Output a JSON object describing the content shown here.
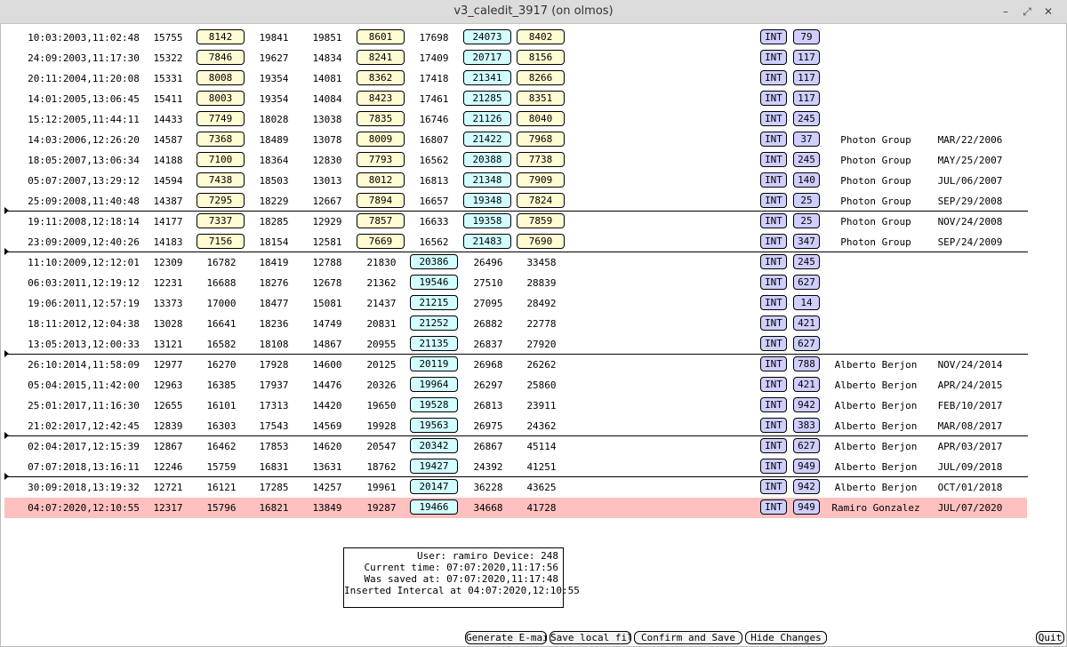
{
  "window": {
    "title": "v3_caledit_3917 (on olmos)",
    "minimize_glyph": "–",
    "maximize_glyph": "⤢",
    "close_glyph": "✕"
  },
  "rows": [
    {
      "timestamp": "10:03:2003,11:02:48",
      "c1": "15755",
      "c2": "8142",
      "c3": "19841",
      "c4": "19851",
      "c5": "8601",
      "c6": "17698",
      "c7": "24073",
      "c8": "8402",
      "type": "INT",
      "count": "79",
      "group": "",
      "date": ""
    },
    {
      "timestamp": "24:09:2003,11:17:30",
      "c1": "15322",
      "c2": "7846",
      "c3": "19627",
      "c4": "14834",
      "c5": "8241",
      "c6": "17409",
      "c7": "20717",
      "c8": "8156",
      "type": "INT",
      "count": "117",
      "group": "",
      "date": ""
    },
    {
      "timestamp": "20:11:2004,11:20:08",
      "c1": "15331",
      "c2": "8008",
      "c3": "19354",
      "c4": "14081",
      "c5": "8362",
      "c6": "17418",
      "c7": "21341",
      "c8": "8266",
      "type": "INT",
      "count": "117",
      "group": "",
      "date": ""
    },
    {
      "timestamp": "14:01:2005,13:06:45",
      "c1": "15411",
      "c2": "8003",
      "c3": "19354",
      "c4": "14084",
      "c5": "8423",
      "c6": "17461",
      "c7": "21285",
      "c8": "8351",
      "type": "INT",
      "count": "117",
      "group": "",
      "date": ""
    },
    {
      "timestamp": "15:12:2005,11:44:11",
      "c1": "14433",
      "c2": "7749",
      "c3": "18028",
      "c4": "13038",
      "c5": "7835",
      "c6": "16746",
      "c7": "21126",
      "c8": "8040",
      "type": "INT",
      "count": "245",
      "group": "",
      "date": ""
    },
    {
      "timestamp": "14:03:2006,12:26:20",
      "c1": "14587",
      "c2": "7368",
      "c3": "18489",
      "c4": "13078",
      "c5": "8009",
      "c6": "16807",
      "c7": "21422",
      "c8": "7968",
      "type": "INT",
      "count": "37",
      "group": "Photon Group",
      "date": "MAR/22/2006"
    },
    {
      "timestamp": "18:05:2007,13:06:34",
      "c1": "14188",
      "c2": "7100",
      "c3": "18364",
      "c4": "12830",
      "c5": "7793",
      "c6": "16562",
      "c7": "20388",
      "c8": "7738",
      "type": "INT",
      "count": "245",
      "group": "Photon Group",
      "date": "MAY/25/2007"
    },
    {
      "timestamp": "05:07:2007,13:29:12",
      "c1": "14594",
      "c2": "7438",
      "c3": "18503",
      "c4": "13013",
      "c5": "8012",
      "c6": "16813",
      "c7": "21348",
      "c8": "7909",
      "type": "INT",
      "count": "140",
      "group": "Photon Group",
      "date": "JUL/06/2007"
    },
    {
      "timestamp": "25:09:2008,11:40:48",
      "c1": "14387",
      "c2": "7295",
      "c3": "18229",
      "c4": "12667",
      "c5": "7894",
      "c6": "16657",
      "c7": "19348",
      "c8": "7824",
      "type": "INT",
      "count": "25",
      "group": "Photon Group",
      "date": "SEP/29/2008"
    },
    {
      "timestamp": "19:11:2008,12:18:14",
      "c1": "14177",
      "c2": "7337",
      "c3": "18285",
      "c4": "12929",
      "c5": "7857",
      "c6": "16633",
      "c7": "19358",
      "c8": "7859",
      "type": "INT",
      "count": "25",
      "group": "Photon Group",
      "date": "NOV/24/2008"
    },
    {
      "timestamp": "23:09:2009,12:40:26",
      "c1": "14183",
      "c2": "7156",
      "c3": "18154",
      "c4": "12581",
      "c5": "7669",
      "c6": "16562",
      "c7": "21483",
      "c8": "7690",
      "type": "INT",
      "count": "347",
      "group": "Photon Group",
      "date": "SEP/24/2009"
    },
    {
      "timestamp": "11:10:2009,12:12:01",
      "c1": "12309",
      "c2": "16782",
      "c3": "18419",
      "c4": "12788",
      "c5": "21830",
      "c6": "20386",
      "c7": "26496",
      "c8": "33458",
      "type": "INT",
      "count": "245",
      "group": "",
      "date": ""
    },
    {
      "timestamp": "06:03:2011,12:19:12",
      "c1": "12231",
      "c2": "16688",
      "c3": "18276",
      "c4": "12678",
      "c5": "21362",
      "c6": "19546",
      "c7": "27510",
      "c8": "28839",
      "type": "INT",
      "count": "627",
      "group": "",
      "date": ""
    },
    {
      "timestamp": "19:06:2011,12:57:19",
      "c1": "13373",
      "c2": "17000",
      "c3": "18477",
      "c4": "15081",
      "c5": "21437",
      "c6": "21215",
      "c7": "27095",
      "c8": "28492",
      "type": "INT",
      "count": "14",
      "group": "",
      "date": ""
    },
    {
      "timestamp": "18:11:2012,12:04:38",
      "c1": "13028",
      "c2": "16641",
      "c3": "18236",
      "c4": "14749",
      "c5": "20831",
      "c6": "21252",
      "c7": "26882",
      "c8": "22778",
      "type": "INT",
      "count": "421",
      "group": "",
      "date": ""
    },
    {
      "timestamp": "13:05:2013,12:00:33",
      "c1": "13121",
      "c2": "16582",
      "c3": "18108",
      "c4": "14867",
      "c5": "20955",
      "c6": "21135",
      "c7": "26837",
      "c8": "27920",
      "type": "INT",
      "count": "627",
      "group": "",
      "date": ""
    },
    {
      "timestamp": "26:10:2014,11:58:09",
      "c1": "12977",
      "c2": "16270",
      "c3": "17928",
      "c4": "14600",
      "c5": "20125",
      "c6": "20119",
      "c7": "26968",
      "c8": "26262",
      "type": "INT",
      "count": "788",
      "group": "Alberto Berjon",
      "date": "NOV/24/2014"
    },
    {
      "timestamp": "05:04:2015,11:42:00",
      "c1": "12963",
      "c2": "16385",
      "c3": "17937",
      "c4": "14476",
      "c5": "20326",
      "c6": "19964",
      "c7": "26297",
      "c8": "25860",
      "type": "INT",
      "count": "421",
      "group": "Alberto Berjon",
      "date": "APR/24/2015"
    },
    {
      "timestamp": "25:01:2017,11:16:30",
      "c1": "12655",
      "c2": "16101",
      "c3": "17313",
      "c4": "14420",
      "c5": "19650",
      "c6": "19528",
      "c7": "26813",
      "c8": "23911",
      "type": "INT",
      "count": "942",
      "group": "Alberto Berjon",
      "date": "FEB/10/2017"
    },
    {
      "timestamp": "21:02:2017,12:42:45",
      "c1": "12839",
      "c2": "16303",
      "c3": "17543",
      "c4": "14569",
      "c5": "19928",
      "c6": "19563",
      "c7": "26975",
      "c8": "24362",
      "type": "INT",
      "count": "383",
      "group": "Alberto Berjon",
      "date": "MAR/08/2017"
    },
    {
      "timestamp": "02:04:2017,12:15:39",
      "c1": "12867",
      "c2": "16462",
      "c3": "17853",
      "c4": "14620",
      "c5": "20547",
      "c6": "20342",
      "c7": "26867",
      "c8": "45114",
      "type": "INT",
      "count": "627",
      "group": "Alberto Berjon",
      "date": "APR/03/2017"
    },
    {
      "timestamp": "07:07:2018,13:16:11",
      "c1": "12246",
      "c2": "15759",
      "c3": "16831",
      "c4": "13631",
      "c5": "18762",
      "c6": "19427",
      "c7": "24392",
      "c8": "41251",
      "type": "INT",
      "count": "949",
      "group": "Alberto Berjon",
      "date": "JUL/09/2018"
    },
    {
      "timestamp": "30:09:2018,13:19:32",
      "c1": "12721",
      "c2": "16121",
      "c3": "17285",
      "c4": "14257",
      "c5": "19961",
      "c6": "20147",
      "c7": "36228",
      "c8": "43625",
      "type": "INT",
      "count": "942",
      "group": "Alberto Berjon",
      "date": "OCT/01/2018"
    },
    {
      "timestamp": "04:07:2020,12:10:55",
      "c1": "12317",
      "c2": "15796",
      "c3": "16821",
      "c4": "13849",
      "c5": "19287",
      "c6": "19466",
      "c7": "34668",
      "c8": "41728",
      "type": "INT",
      "count": "949",
      "group": "Ramiro Gonzalez",
      "date": "JUL/07/2020"
    }
  ],
  "info": {
    "user_line": "User: ramiro Device: 248",
    "current_time_line": "Current time: 07:07:2020,11:17:56",
    "saved_line": "Was saved at: 07:07:2020,11:17:48",
    "inserted_line": "Inserted Intercal at 04:07:2020,12:10:55"
  },
  "buttons": {
    "generate_email": "Generate E-mail",
    "save_local": "Save local file",
    "confirm_save": "Confirm and Save",
    "hide_changes": "Hide Changes",
    "quit": "Quit"
  },
  "colors": {
    "yellow_box": "#fffbd2",
    "cyan_box": "#d2feff",
    "int_box": "#cfcfff",
    "highlight_row": "#ffc0c0"
  }
}
